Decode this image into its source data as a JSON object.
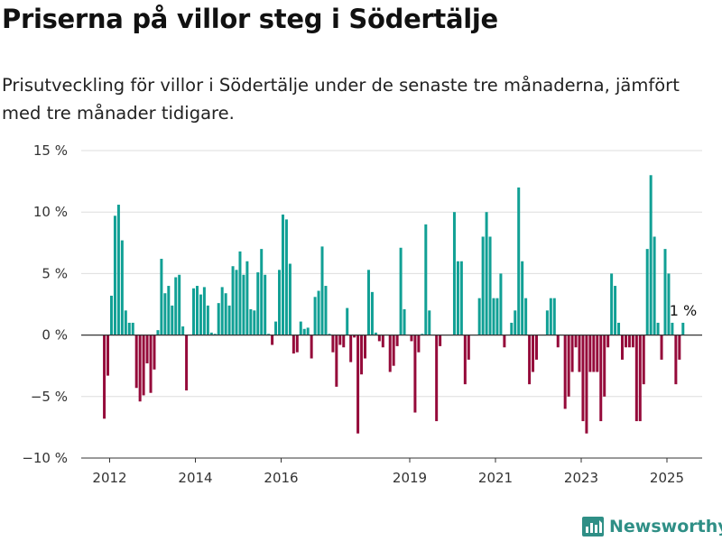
{
  "title": "Priserna på villor steg i Södertälje",
  "subtitle": "Prisutveckling för villor i Södertälje under de senaste tre månaderna, jämfört med tre månader tidigare.",
  "brand": {
    "name": "Newsworthy",
    "icon": "newsworthy-logo-icon"
  },
  "colors": {
    "positive": "#11a095",
    "negative": "#950a3a",
    "grid": "#dddddd",
    "zero_line": "#333333"
  },
  "chart_data": {
    "type": "bar",
    "title": "",
    "xlabel": "",
    "ylabel": "",
    "ylim": [
      -10,
      15
    ],
    "y_ticks": [
      15,
      10,
      5,
      0,
      -5,
      -10
    ],
    "y_tick_labels": [
      "15 %",
      "10 %",
      "5 %",
      "0 %",
      "−5 %",
      "−10 %"
    ],
    "x_start": 2011.875,
    "x_step": 0.08333,
    "x_ticks": [
      2012,
      2014,
      2016,
      2019,
      2021,
      2023,
      2025
    ],
    "x_tick_labels": [
      "2012",
      "2014",
      "2016",
      "2019",
      "2021",
      "2023",
      "2025"
    ],
    "grid": true,
    "unit": "%",
    "annotation": {
      "text": "1 %",
      "value": 1
    },
    "values": [
      -6.8,
      -3.3,
      3.2,
      9.7,
      10.6,
      7.7,
      2.0,
      1.0,
      1.0,
      -4.3,
      -5.4,
      -4.9,
      -2.3,
      -4.7,
      -2.8,
      0.4,
      6.2,
      3.4,
      4.0,
      2.4,
      4.7,
      4.9,
      0.7,
      -4.5,
      0,
      3.8,
      4.0,
      3.3,
      3.9,
      2.4,
      0.2,
      0.1,
      2.6,
      3.9,
      3.4,
      2.4,
      5.6,
      5.3,
      6.8,
      4.9,
      6.0,
      2.1,
      2.0,
      5.1,
      7.0,
      4.9,
      0.1,
      -0.8,
      1.1,
      5.3,
      9.8,
      9.4,
      5.8,
      -1.5,
      -1.4,
      1.1,
      0.5,
      0.6,
      -1.9,
      3.1,
      3.6,
      7.2,
      4.0,
      0.1,
      -1.4,
      -4.2,
      -0.8,
      -1.0,
      2.2,
      -2.2,
      -0.2,
      -8.0,
      -3.2,
      -1.9,
      5.3,
      3.5,
      0.2,
      -0.5,
      -1.0,
      0,
      -3.0,
      -2.5,
      -0.9,
      7.1,
      2.1,
      0,
      -0.5,
      -6.3,
      -1.4,
      0.1,
      9.0,
      2.0,
      0,
      -7.0,
      -0.9,
      0,
      0,
      0,
      10.0,
      6.0,
      6.0,
      -4.0,
      -2.0,
      0,
      0,
      3.0,
      8.0,
      10.0,
      8.0,
      3.0,
      3.0,
      5.0,
      -1.0,
      0,
      1.0,
      2.0,
      12.0,
      6.0,
      3.0,
      -4.0,
      -3.0,
      -2.0,
      0,
      0,
      2.0,
      3.0,
      3.0,
      -1.0,
      0,
      -6.0,
      -5.0,
      -3.0,
      -1.0,
      -3.0,
      -7.0,
      -8.0,
      -3.0,
      -3.0,
      -3.0,
      -7.0,
      -5.0,
      -1.0,
      5.0,
      4.0,
      1.0,
      -2.0,
      -1.0,
      -1.0,
      -1.0,
      -7.0,
      -7.0,
      -4.0,
      7.0,
      13.0,
      8.0,
      1.0,
      -2.0,
      7.0,
      5.0,
      1.0,
      -4.0,
      -2.0,
      1.0
    ]
  }
}
